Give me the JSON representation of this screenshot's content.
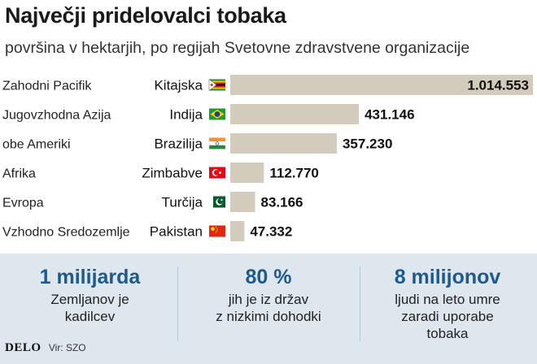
{
  "title": "Največji pridelovalci tobaka",
  "subtitle": "površina v hektarjih, po regijah Svetovne zdravstvene organizacije",
  "chart_data": {
    "type": "bar",
    "orientation": "horizontal",
    "title": "Največji pridelovalci tobaka",
    "subtitle": "površina v hektarjih, po regijah Svetovne zdravstvene organizacije",
    "regions": [
      "Zahodni Pacifik",
      "Jugovzhodna Azija",
      "obe Ameriki",
      "Afrika",
      "Evropa",
      "Vzhodno Sredozemlje"
    ],
    "categories": [
      "Kitajska",
      "Indija",
      "Brazilija",
      "Zimbabve",
      "Turčija",
      "Pakistan"
    ],
    "values": [
      1014553,
      431146,
      357230,
      112770,
      83166,
      47332
    ],
    "value_labels": [
      "1.014.553",
      "431.146",
      "357.230",
      "112.770",
      "83.166",
      "47.332"
    ],
    "flag_icons": [
      "zimbabwe-flag-icon",
      "brazil-flag-icon",
      "india-flag-icon",
      "turkey-flag-icon",
      "pakistan-flag-icon",
      "china-flag-icon"
    ],
    "bar_color": "#d3cbbb",
    "xlim": [
      0,
      1014553
    ],
    "grid": false,
    "legend": "none"
  },
  "stats": [
    {
      "value": "1 milijarda",
      "desc": [
        "Zemljanov je",
        "kadilcev"
      ]
    },
    {
      "value": "80 %",
      "desc": [
        "jih je iz držav",
        "z nizkimi dohodki"
      ]
    },
    {
      "value": "8 milijonov",
      "desc": [
        "ljudi na leto umre",
        "zaradi uporabe",
        "tobaka"
      ]
    }
  ],
  "footer": {
    "logo": "DELO",
    "source": "Vir: SZO"
  },
  "colors": {
    "accent": "#1f5a8f",
    "stats_bg": "#dfe7ee",
    "bar": "#d3cbbb"
  }
}
